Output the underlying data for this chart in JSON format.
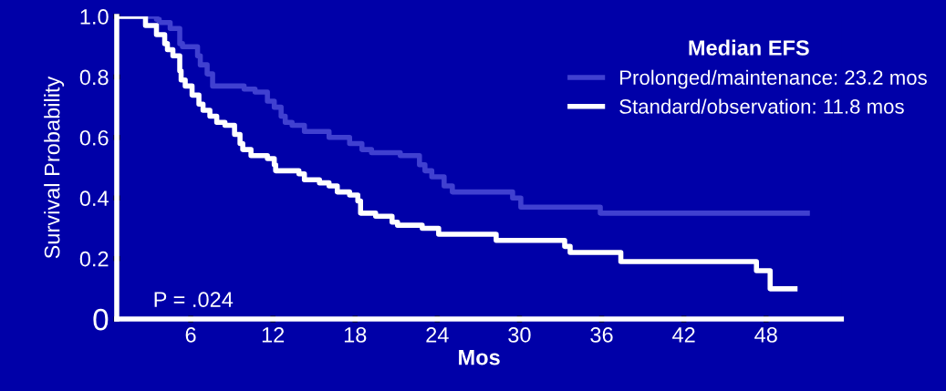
{
  "chart_data": {
    "type": "step",
    "xlabel": "Mos",
    "ylabel": "Survival Probability",
    "legend_title": "Median EFS",
    "legend": "top right",
    "xlim": [
      0.6,
      53.5
    ],
    "ylim": [
      0,
      1.0
    ],
    "xticks": [
      6,
      12,
      18,
      24,
      30,
      36,
      42,
      48
    ],
    "yticks": [
      {
        "value": 0,
        "label": "0"
      },
      0.2,
      0.4,
      0.6,
      0.8,
      {
        "value": 1.0,
        "label": "1.0"
      }
    ],
    "grid": false,
    "marker": "none",
    "line_style": "solid",
    "annotations": [
      "P = .024"
    ],
    "series": [
      {
        "name": "Prolonged/maintenance: 23.2 mos",
        "color": "#4040d0",
        "x": [
          0.6,
          3.5,
          3.7,
          4.5,
          5.2,
          5.4,
          6.5,
          6.7,
          7.2,
          7.6,
          9.9,
          10.7,
          11.6,
          12.1,
          12.6,
          12.9,
          13.4,
          14.3,
          16.1,
          17.6,
          18.5,
          19.2,
          21.3,
          22.7,
          23.1,
          23.6,
          24.5,
          25.1,
          29.5,
          30.1,
          35.9,
          36.3,
          51.2
        ],
        "values": [
          1.0,
          0.99,
          0.98,
          0.96,
          0.91,
          0.9,
          0.87,
          0.84,
          0.81,
          0.77,
          0.76,
          0.75,
          0.72,
          0.7,
          0.67,
          0.65,
          0.64,
          0.62,
          0.6,
          0.58,
          0.56,
          0.55,
          0.54,
          0.51,
          0.49,
          0.47,
          0.44,
          0.42,
          0.4,
          0.37,
          0.35,
          0.35,
          0.35
        ]
      },
      {
        "name": "Standard/observation: 11.8 mos",
        "color": "#ffffff",
        "x": [
          0.6,
          2.7,
          3.5,
          4.1,
          4.3,
          4.7,
          5.2,
          5.3,
          5.6,
          6.1,
          6.6,
          6.9,
          7.4,
          7.9,
          8.5,
          9.2,
          9.6,
          9.8,
          10.4,
          11.6,
          12.1,
          12.2,
          13.9,
          14.3,
          15.4,
          16.1,
          16.7,
          17.6,
          18.2,
          18.4,
          19.5,
          20.7,
          21.1,
          22.9,
          24.1,
          28.3,
          33.3,
          33.7,
          37.4,
          47.3,
          48.3,
          50.3
        ],
        "values": [
          1.0,
          0.97,
          0.94,
          0.91,
          0.89,
          0.87,
          0.82,
          0.79,
          0.77,
          0.74,
          0.71,
          0.69,
          0.67,
          0.65,
          0.64,
          0.61,
          0.58,
          0.56,
          0.54,
          0.53,
          0.51,
          0.49,
          0.48,
          0.46,
          0.45,
          0.44,
          0.42,
          0.41,
          0.39,
          0.35,
          0.34,
          0.32,
          0.31,
          0.3,
          0.28,
          0.26,
          0.24,
          0.22,
          0.19,
          0.16,
          0.1,
          0.1
        ]
      }
    ]
  }
}
